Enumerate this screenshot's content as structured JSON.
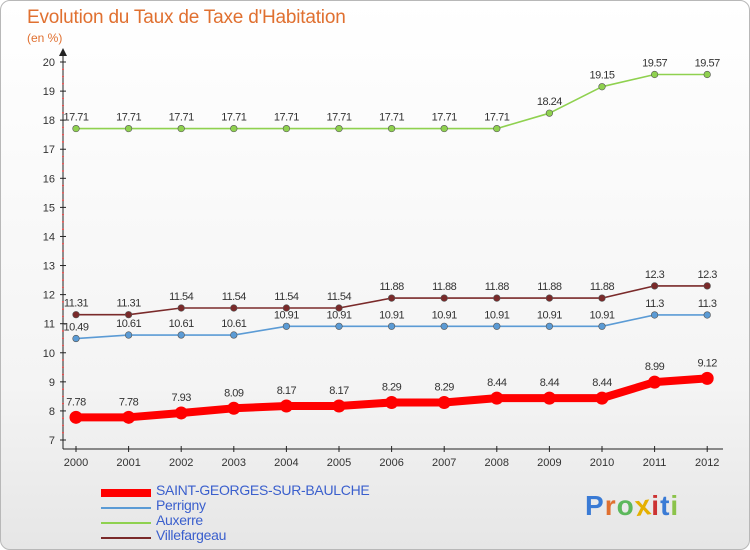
{
  "header": {
    "title": "Evolution du Taux de Taxe d'Habitation",
    "subtitle": "(en %)"
  },
  "logo": {
    "text": "Proxiti",
    "colors": [
      "#3a7bd5",
      "#e07030",
      "#5cb85c",
      "#e5b000",
      "#cc3333",
      "#3a7bd5",
      "#8bc34a"
    ]
  },
  "chart_data": {
    "type": "line",
    "x": [
      "2000",
      "2001",
      "2002",
      "2003",
      "2004",
      "2005",
      "2006",
      "2007",
      "2008",
      "2009",
      "2010",
      "2011",
      "2012"
    ],
    "ylim": [
      7,
      20
    ],
    "yticks": [
      "7",
      "8",
      "9",
      "10",
      "11",
      "12",
      "13",
      "14",
      "15",
      "16",
      "17",
      "18",
      "19",
      "20"
    ],
    "grid": false,
    "legend_position": "bottom-left",
    "series": [
      {
        "name": "SAINT-GEORGES-SUR-BAULCHE",
        "color": "#ff0000",
        "thick": true,
        "values": [
          7.78,
          7.78,
          7.93,
          8.09,
          8.17,
          8.17,
          8.29,
          8.29,
          8.44,
          8.44,
          8.44,
          8.99,
          9.12
        ],
        "labels": [
          "7.78",
          "7.78",
          "7.93",
          "8.09",
          "8.17",
          "8.17",
          "8.29",
          "8.29",
          "8.44",
          "8.44",
          "8.44",
          "8.99",
          "9.12"
        ]
      },
      {
        "name": "Perrigny",
        "color": "#5b9bd5",
        "thick": false,
        "values": [
          10.49,
          10.61,
          10.61,
          10.61,
          10.91,
          10.91,
          10.91,
          10.91,
          10.91,
          10.91,
          10.91,
          11.3,
          11.3
        ],
        "labels": [
          "10.49",
          "10.61",
          "10.61",
          "10.61",
          "10.91",
          "10.91",
          "10.91",
          "10.91",
          "10.91",
          "10.91",
          "10.91",
          "11.3",
          "11.3"
        ]
      },
      {
        "name": "Auxerre",
        "color": "#8fd14f",
        "thick": false,
        "values": [
          17.71,
          17.71,
          17.71,
          17.71,
          17.71,
          17.71,
          17.71,
          17.71,
          17.71,
          18.24,
          19.15,
          19.57,
          19.57
        ],
        "labels": [
          "17.71",
          "17.71",
          "17.71",
          "17.71",
          "17.71",
          "17.71",
          "17.71",
          "17.71",
          "17.71",
          "18.24",
          "19.15",
          "19.57",
          "19.57"
        ]
      },
      {
        "name": "Villefargeau",
        "color": "#7a2a2a",
        "thick": false,
        "values": [
          11.31,
          11.31,
          11.54,
          11.54,
          11.54,
          11.54,
          11.88,
          11.88,
          11.88,
          11.88,
          11.88,
          12.3,
          12.3
        ],
        "labels": [
          "11.31",
          "11.31",
          "11.54",
          "11.54",
          "11.54",
          "11.54",
          "11.88",
          "11.88",
          "11.88",
          "11.88",
          "11.88",
          "12.3",
          "12.3"
        ]
      }
    ]
  }
}
